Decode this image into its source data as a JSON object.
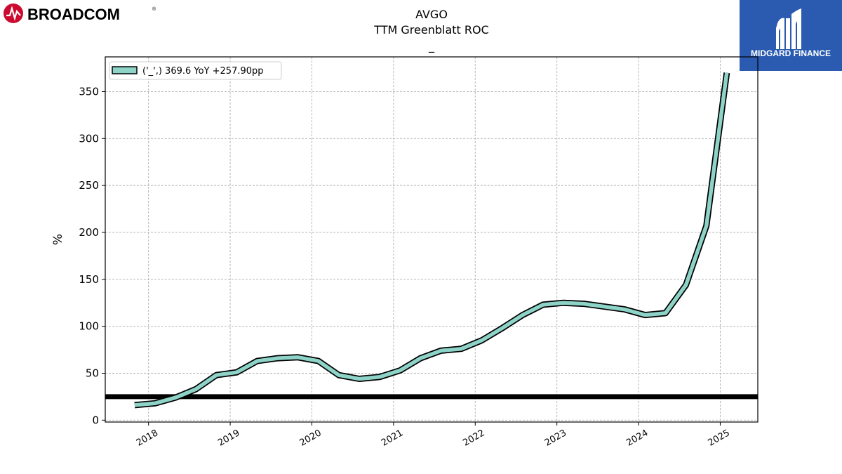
{
  "brand_left": {
    "name": "BROADCOM",
    "registered": "®",
    "color": "#cc092f"
  },
  "brand_right": {
    "name": "MIDGARD FINANCE",
    "color": "#2a5bb0"
  },
  "chart_data": {
    "type": "line",
    "title": "AVGO",
    "subtitle": "TTM Greenblatt ROC",
    "subtitle2": "_",
    "xlabel": "",
    "ylabel": "%",
    "xlim": [
      2017.47,
      2025.46
    ],
    "ylim": [
      -2,
      387
    ],
    "x_ticks": [
      2018,
      2019,
      2020,
      2021,
      2022,
      2023,
      2024,
      2025
    ],
    "x_tick_labels": [
      "2018",
      "2019",
      "2020",
      "2021",
      "2022",
      "2023",
      "2024",
      "2025"
    ],
    "y_ticks": [
      0,
      50,
      100,
      150,
      200,
      250,
      300,
      350
    ],
    "y_tick_labels": [
      "0",
      "50",
      "100",
      "150",
      "200",
      "250",
      "300",
      "350"
    ],
    "grid": true,
    "legend_position": "top-left",
    "reference_line": {
      "y": 25,
      "color": "#000000"
    },
    "series": [
      {
        "name": "('_',) 369.6 YoY +257.90pp",
        "color": "#8dd3c7",
        "x": [
          2017.83,
          2018.08,
          2018.33,
          2018.58,
          2018.83,
          2019.08,
          2019.33,
          2019.58,
          2019.83,
          2020.08,
          2020.33,
          2020.58,
          2020.83,
          2021.08,
          2021.33,
          2021.58,
          2021.83,
          2022.08,
          2022.33,
          2022.58,
          2022.83,
          2023.08,
          2023.33,
          2023.58,
          2023.83,
          2024.08,
          2024.33,
          2024.58,
          2024.83,
          2025.08
        ],
        "y": [
          16,
          18,
          24,
          33,
          48,
          51,
          63,
          66,
          67,
          63,
          48,
          44,
          46,
          53,
          66,
          74,
          76,
          85,
          98,
          112,
          123,
          125,
          124,
          121,
          118,
          112,
          114,
          144,
          207,
          370
        ]
      }
    ]
  }
}
